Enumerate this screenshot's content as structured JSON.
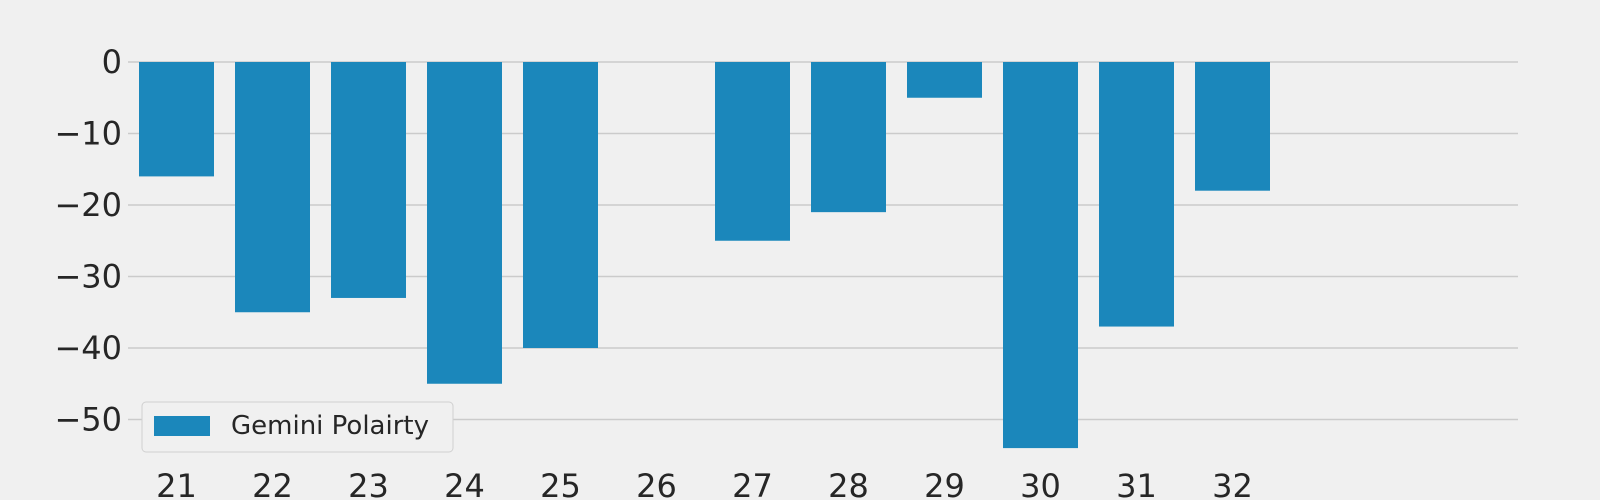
{
  "chart_data": {
    "type": "bar",
    "categories": [
      "21",
      "22",
      "23",
      "24",
      "25",
      "26",
      "27",
      "28",
      "29",
      "30",
      "31",
      "32"
    ],
    "series": [
      {
        "name": "Gemini Polairty",
        "values": [
          -16,
          -35,
          -33,
          -45,
          -40,
          0,
          -25,
          -21,
          -5,
          -54,
          -37,
          -18
        ],
        "color": "#1b87bb"
      }
    ],
    "title": "",
    "xlabel": "",
    "ylabel": "",
    "ylim": [
      -55,
      3
    ],
    "yticks": [
      0,
      -10,
      -20,
      -30,
      -40,
      -50
    ],
    "ytick_labels": [
      "0",
      "−10",
      "−20",
      "−30",
      "−40",
      "−50"
    ],
    "grid": "horizontal",
    "legend_position": "bottom-left",
    "background_color": "#f0f0f0",
    "grid_color": "#cbcbcb"
  }
}
